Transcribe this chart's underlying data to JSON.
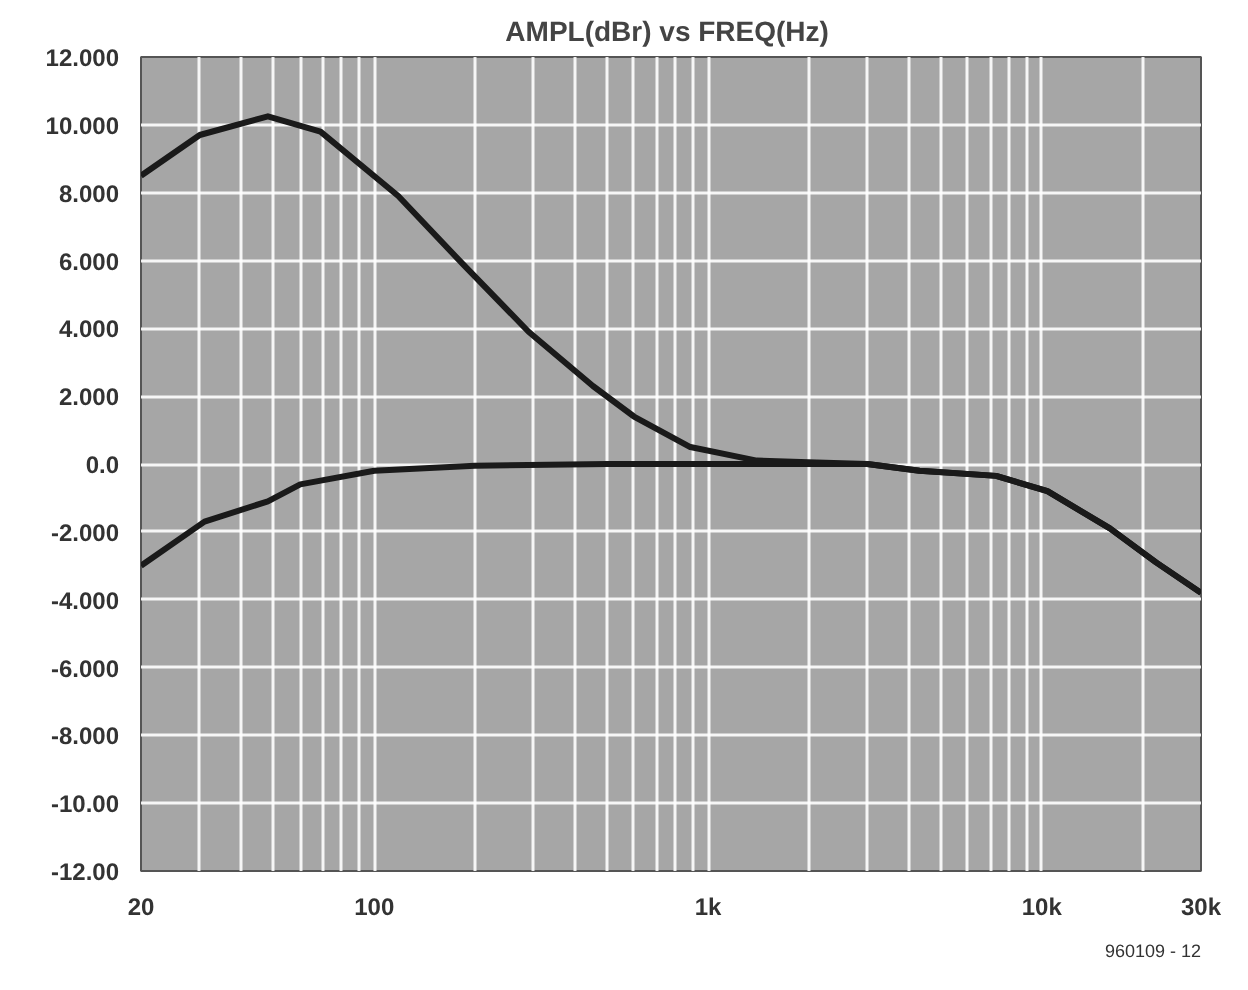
{
  "chart_data": {
    "type": "line",
    "title": "AMPL(dBr)  vs FREQ(Hz)",
    "log": "x",
    "grid": true,
    "line_style": "solid",
    "marker": "none",
    "xlim": [
      20,
      30000
    ],
    "ylim": [
      -12,
      12
    ],
    "xticks": [
      20,
      {
        "value": 30,
        "label": null
      },
      {
        "value": 40,
        "label": null
      },
      {
        "value": 50,
        "label": null
      },
      {
        "value": 60,
        "label": null
      },
      {
        "value": 70,
        "label": null
      },
      {
        "value": 80,
        "label": null
      },
      {
        "value": 90,
        "label": null
      },
      100,
      {
        "value": 200,
        "label": null
      },
      {
        "value": 300,
        "label": null
      },
      {
        "value": 400,
        "label": null
      },
      {
        "value": 500,
        "label": null
      },
      {
        "value": 600,
        "label": null
      },
      {
        "value": 700,
        "label": null
      },
      {
        "value": 800,
        "label": null
      },
      {
        "value": 900,
        "label": null
      },
      {
        "value": 1000,
        "label": "1k"
      },
      {
        "value": 2000,
        "label": null
      },
      {
        "value": 3000,
        "label": null
      },
      {
        "value": 4000,
        "label": null
      },
      {
        "value": 5000,
        "label": null
      },
      {
        "value": 6000,
        "label": null
      },
      {
        "value": 7000,
        "label": null
      },
      {
        "value": 8000,
        "label": null
      },
      {
        "value": 9000,
        "label": null
      },
      {
        "value": 10000,
        "label": "10k"
      },
      {
        "value": 20000,
        "label": null
      },
      {
        "value": 30000,
        "label": "30k"
      }
    ],
    "yticks": [
      {
        "value": 12,
        "label": "12.000"
      },
      {
        "value": 10,
        "label": "10.000"
      },
      {
        "value": 8,
        "label": "8.000"
      },
      {
        "value": 6,
        "label": "6.000"
      },
      {
        "value": 4,
        "label": "4.000"
      },
      {
        "value": 2,
        "label": "2.000"
      },
      {
        "value": 0,
        "label": "0.0"
      },
      {
        "value": -2,
        "label": "-2.000"
      },
      {
        "value": -4,
        "label": "-4.000"
      },
      {
        "value": -6,
        "label": "-6.000"
      },
      {
        "value": -8,
        "label": "-8.000"
      },
      {
        "value": -10,
        "label": "-10.00"
      },
      {
        "value": -12,
        "label": "-12.00"
      }
    ],
    "series": [
      {
        "color": "#1a1a1a",
        "x": [
          20,
          30,
          48,
          69,
          118,
          184,
          290,
          452,
          600,
          885,
          1400,
          2000,
          3000,
          4300,
          7300,
          10400,
          16000,
          22000,
          30000
        ],
        "values": [
          8.5,
          9.7,
          10.25,
          9.8,
          7.9,
          5.9,
          3.9,
          2.3,
          1.4,
          0.5,
          0.1,
          0.05,
          0.0,
          -0.2,
          -0.35,
          -0.8,
          -1.9,
          -2.9,
          -3.8
        ]
      },
      {
        "color": "#1a1a1a",
        "x": [
          20,
          31,
          48,
          60,
          100,
          200,
          500,
          1000,
          2000,
          3000,
          4300,
          7300,
          10400,
          16000,
          22000,
          30000
        ],
        "values": [
          -3.0,
          -1.7,
          -1.1,
          -0.6,
          -0.2,
          -0.05,
          0.0,
          0.0,
          0.0,
          0.0,
          -0.2,
          -0.35,
          -0.8,
          -1.9,
          -2.9,
          -3.8
        ]
      }
    ],
    "annotations": [
      "960109 - 12"
    ]
  }
}
